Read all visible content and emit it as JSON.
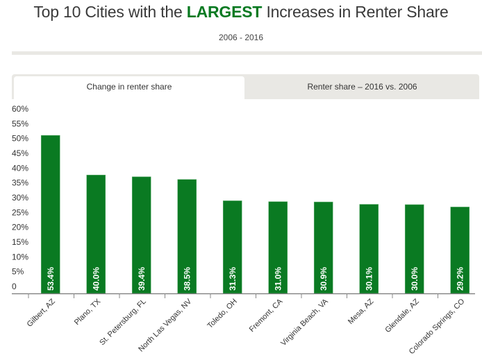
{
  "header": {
    "title_prefix": "Top 10 Cities with the ",
    "title_highlight": "LARGEST",
    "title_suffix": " Increases in Renter Share",
    "subtitle": "2006 - 2016"
  },
  "tabs": [
    {
      "label": "Change in renter share",
      "active": true
    },
    {
      "label": "Renter share – 2016 vs. 2006",
      "active": false
    }
  ],
  "colors": {
    "bar": "#0a7a22",
    "accent": "#0a7a22"
  },
  "chart_data": {
    "type": "bar",
    "title": "Top 10 Cities with the LARGEST Increases in Renter Share",
    "subtitle": "2006 - 2016",
    "xlabel": "",
    "ylabel": "",
    "ylim": [
      0,
      60
    ],
    "yticks": [
      0,
      5,
      10,
      15,
      20,
      25,
      30,
      35,
      40,
      45,
      50,
      55,
      60
    ],
    "ytick_labels": [
      "0",
      "5%",
      "10%",
      "15%",
      "20%",
      "25%",
      "30%",
      "35%",
      "40%",
      "45%",
      "50%",
      "55%",
      "60%"
    ],
    "grid": false,
    "categories": [
      "Gilbert, AZ",
      "Plano, TX",
      "St. Petersburg, FL",
      "North Las Vegas, NV",
      "Toledo, OH",
      "Fremont, CA",
      "Virginia Beach, VA",
      "Mesa, AZ",
      "Glendale, AZ",
      "Colorado Springs, CO"
    ],
    "values": [
      53.4,
      40.0,
      39.4,
      38.5,
      31.3,
      31.0,
      30.9,
      30.1,
      30.0,
      29.2
    ],
    "data_labels": [
      "53.4%",
      "40.0%",
      "39.4%",
      "38.5%",
      "31.3%",
      "31.0%",
      "30.9%",
      "30.1%",
      "30.0%",
      "29.2%"
    ]
  }
}
